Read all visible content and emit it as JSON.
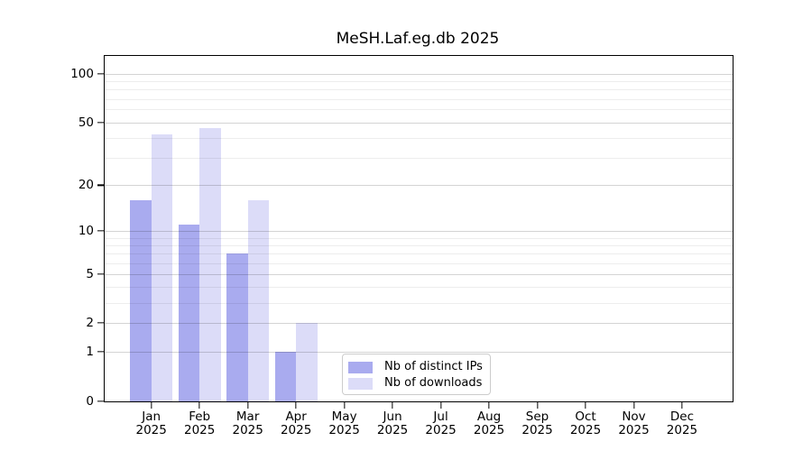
{
  "chart_data": {
    "type": "bar",
    "title": "MeSH.Laf.eg.db 2025",
    "categories": [
      "Jan",
      "Feb",
      "Mar",
      "Apr",
      "May",
      "Jun",
      "Jul",
      "Aug",
      "Sep",
      "Oct",
      "Nov",
      "Dec"
    ],
    "year_label": "2025",
    "series": [
      {
        "name": "Nb of distinct IPs",
        "color": "#a9abef",
        "values": [
          16,
          11,
          7,
          1,
          0,
          0,
          0,
          0,
          0,
          0,
          0,
          0
        ]
      },
      {
        "name": "Nb of downloads",
        "color": "#dcdcf8",
        "values": [
          42,
          46,
          16,
          2,
          0,
          0,
          0,
          0,
          0,
          0,
          0,
          0
        ]
      }
    ],
    "y_scale": "log1p",
    "ylim": [
      0,
      129
    ],
    "y_ticks": [
      0,
      1,
      2,
      5,
      10,
      20,
      50,
      100
    ],
    "y_minor_gridlines": [
      3,
      4,
      6,
      7,
      8,
      9,
      30,
      40,
      60,
      70,
      80,
      90
    ],
    "grid": true,
    "legend_position": "inside lower center"
  },
  "colors": {
    "axis": "#000000",
    "grid_major": "#d4d4d4",
    "grid_minor": "#ececec",
    "legend_border": "#cccccc",
    "background": "#ffffff"
  }
}
